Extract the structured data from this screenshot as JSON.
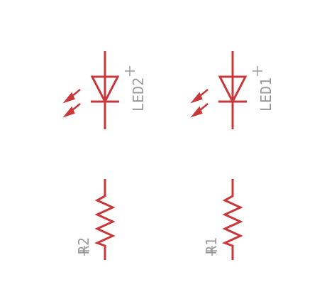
{
  "colors": {
    "symbol": "#c8383b",
    "label": "#9a9a9a",
    "background": "#ffffff"
  },
  "components": [
    {
      "kind": "led",
      "designator": "LED2"
    },
    {
      "kind": "led",
      "designator": "LED1"
    },
    {
      "kind": "resistor",
      "designator": "R2"
    },
    {
      "kind": "resistor",
      "designator": "R1"
    }
  ]
}
